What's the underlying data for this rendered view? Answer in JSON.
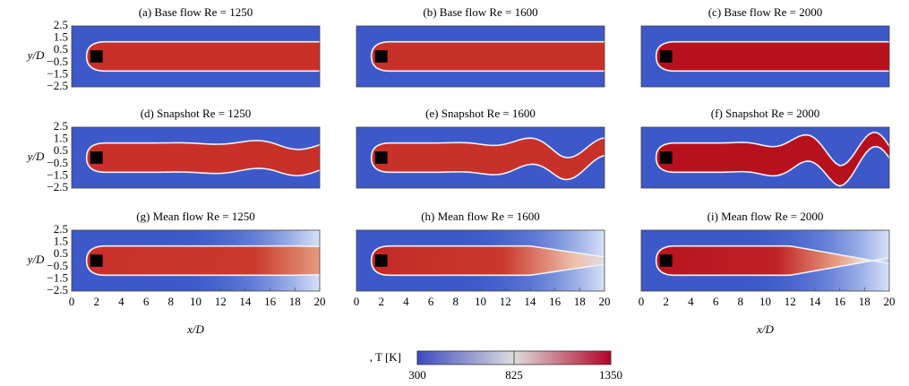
{
  "chart_data": [
    {
      "type": "heatmap",
      "title": "(a) Base flow Re = 1250",
      "xlim": [
        0,
        20
      ],
      "ylim": [
        -2.5,
        2.5
      ],
      "ylabel": "y/D",
      "yticks": [
        {
          "value": -2.5,
          "label": "−2.5"
        },
        {
          "value": -1.5,
          "label": "−1.5"
        },
        {
          "value": -0.5,
          "label": "−0.5"
        },
        0.5,
        1.5,
        2.5
      ]
    },
    {
      "type": "heatmap",
      "title": "(b) Base flow Re = 1600",
      "xlim": [
        0,
        20
      ],
      "ylim": [
        -2.5,
        2.5
      ]
    },
    {
      "type": "heatmap",
      "title": "(c) Base flow Re = 2000",
      "xlim": [
        0,
        20
      ],
      "ylim": [
        -2.5,
        2.5
      ]
    },
    {
      "type": "heatmap",
      "title": "(d) Snapshot Re = 1250",
      "xlim": [
        0,
        20
      ],
      "ylim": [
        -2.5,
        2.5
      ],
      "ylabel": "y/D",
      "yticks": [
        {
          "value": -2.5,
          "label": "−2.5"
        },
        {
          "value": -1.5,
          "label": "−1.5"
        },
        {
          "value": -0.5,
          "label": "−0.5"
        },
        0.5,
        1.5,
        2.5
      ]
    },
    {
      "type": "heatmap",
      "title": "(e) Snapshot Re = 1600",
      "xlim": [
        0,
        20
      ],
      "ylim": [
        -2.5,
        2.5
      ]
    },
    {
      "type": "heatmap",
      "title": "(f) Snapshot Re = 2000",
      "xlim": [
        0,
        20
      ],
      "ylim": [
        -2.5,
        2.5
      ]
    },
    {
      "type": "heatmap",
      "title": "(g) Mean flow Re = 1250",
      "xlim": [
        0,
        20
      ],
      "ylim": [
        -2.5,
        2.5
      ],
      "ylabel": "y/D",
      "yticks": [
        {
          "value": -2.5,
          "label": "−2.5"
        },
        {
          "value": -1.5,
          "label": "−1.5"
        },
        {
          "value": -0.5,
          "label": "−0.5"
        },
        0.5,
        1.5,
        2.5
      ],
      "xlabel": "x/D",
      "xticks": [
        0,
        2,
        4,
        6,
        8,
        10,
        12,
        14,
        16,
        18,
        20
      ]
    },
    {
      "type": "heatmap",
      "title": "(h) Mean flow Re = 1600",
      "xlim": [
        0,
        20
      ],
      "ylim": [
        -2.5,
        2.5
      ],
      "xticks": [
        0,
        2,
        4,
        6,
        8,
        10,
        12,
        14,
        16,
        18,
        20
      ]
    },
    {
      "type": "heatmap",
      "title": "(i) Mean flow Re = 2000",
      "xlim": [
        0,
        20
      ],
      "ylim": [
        -2.5,
        2.5
      ],
      "xlabel": "x/D",
      "xticks": [
        0,
        2,
        4,
        6,
        8,
        10,
        12,
        14,
        16,
        18,
        20
      ]
    }
  ],
  "colorbar": {
    "label": ", T [K]",
    "lim": [
      300,
      1350
    ],
    "ticks": [
      300,
      825,
      1350
    ],
    "colors": [
      "#3b4cc0",
      "#dddddd",
      "#b40426"
    ]
  }
}
